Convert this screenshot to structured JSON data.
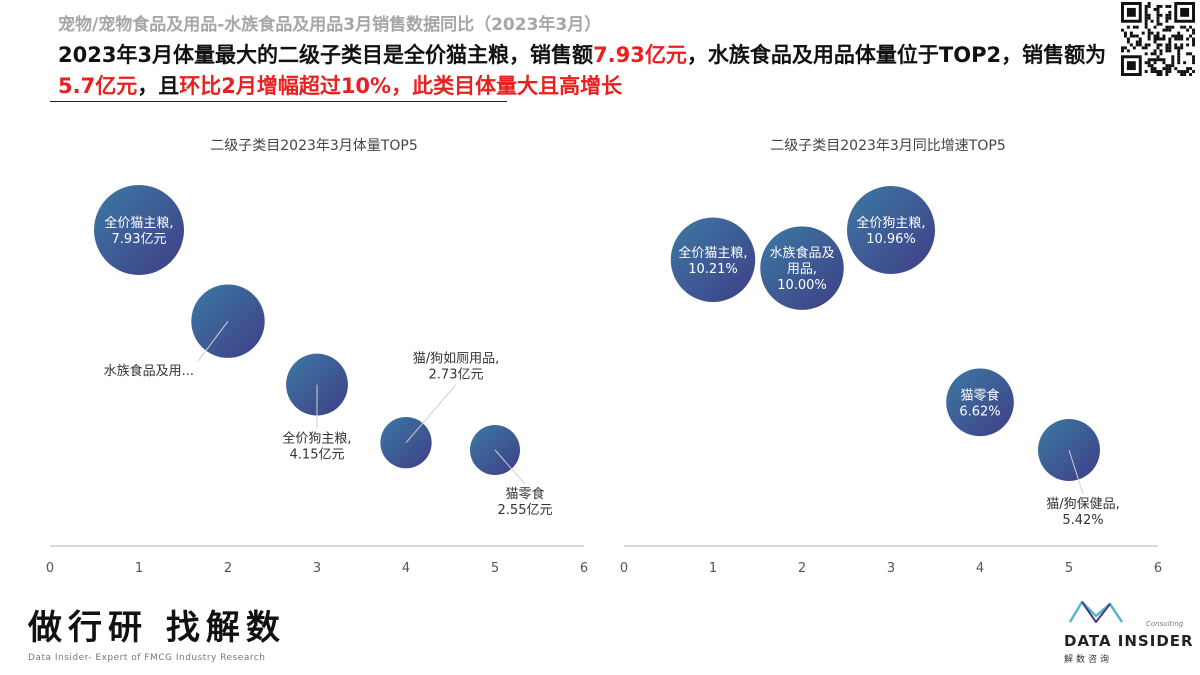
{
  "header": {
    "subtitle": "宠物/宠物食品及用品-水族食品及用品3月销售数据同比（2023年3月）",
    "headline": [
      {
        "text": "2023年3月体量最大的二级子类目是全价猫主粮，销售额",
        "highlight": false
      },
      {
        "text": "7.93亿元",
        "highlight": true
      },
      {
        "text": "，水族食品及用品体量位于TOP2，销售额为",
        "highlight": false
      },
      {
        "text": "5.7亿元",
        "highlight": true
      },
      {
        "text": "，且",
        "highlight": false
      },
      {
        "text": "环比2月增幅超过10%，此类目体量大且高增长",
        "highlight": true
      }
    ]
  },
  "colors": {
    "bubble_start": "#3c79a4",
    "bubble_end": "#3f3e86",
    "highlight": "#e8201f",
    "axis": "#bfbfbf",
    "logo_accent": "#5bb7c9"
  },
  "chart_data": [
    {
      "type": "scatter",
      "title": "二级子类目2023年3月体量TOP5",
      "xlim": [
        0,
        6
      ],
      "x_ticks": [
        "0",
        "1",
        "2",
        "3",
        "4",
        "5",
        "6"
      ],
      "grid": false,
      "points": [
        {
          "x": 1,
          "y": 7.93,
          "label": "全价猫主粮,\n7.93亿元",
          "label_pos": "inside"
        },
        {
          "x": 2,
          "y": 5.7,
          "label": "水族食品及用...",
          "label_pos": "callout"
        },
        {
          "x": 3,
          "y": 4.15,
          "label": "全价狗主粮,\n4.15亿元",
          "label_pos": "callout"
        },
        {
          "x": 4,
          "y": 2.73,
          "label": "猫/狗如厕用品,\n2.73亿元",
          "label_pos": "callout"
        },
        {
          "x": 5,
          "y": 2.55,
          "label": "猫零食\n2.55亿元",
          "label_pos": "callout"
        }
      ]
    },
    {
      "type": "scatter",
      "title": "二级子类目2023年3月同比增速TOP5",
      "xlim": [
        0,
        6
      ],
      "x_ticks": [
        "0",
        "1",
        "2",
        "3",
        "4",
        "5",
        "6"
      ],
      "grid": false,
      "points": [
        {
          "x": 1,
          "y": 10.21,
          "label": "全价猫主粮,\n10.21%",
          "label_pos": "inside"
        },
        {
          "x": 2,
          "y": 10.0,
          "label": "水族食品及\n用品,\n10.00%",
          "label_pos": "inside"
        },
        {
          "x": 3,
          "y": 10.96,
          "label": "全价狗主粮,\n10.96%",
          "label_pos": "inside"
        },
        {
          "x": 4,
          "y": 6.62,
          "label": "猫零食\n6.62%",
          "label_pos": "inside"
        },
        {
          "x": 5,
          "y": 5.42,
          "label": "猫/狗保健品,\n5.42%",
          "label_pos": "callout"
        }
      ]
    }
  ],
  "footer": {
    "brand_cn": "做行研 找解数",
    "brand_en": "Data Insider- Expert of FMCG Industry Research",
    "logo_name": "DATA INSIDER",
    "logo_consulting": "Consulting",
    "logo_cn": "解数咨询",
    "qr_icon": "qr-code-icon"
  }
}
